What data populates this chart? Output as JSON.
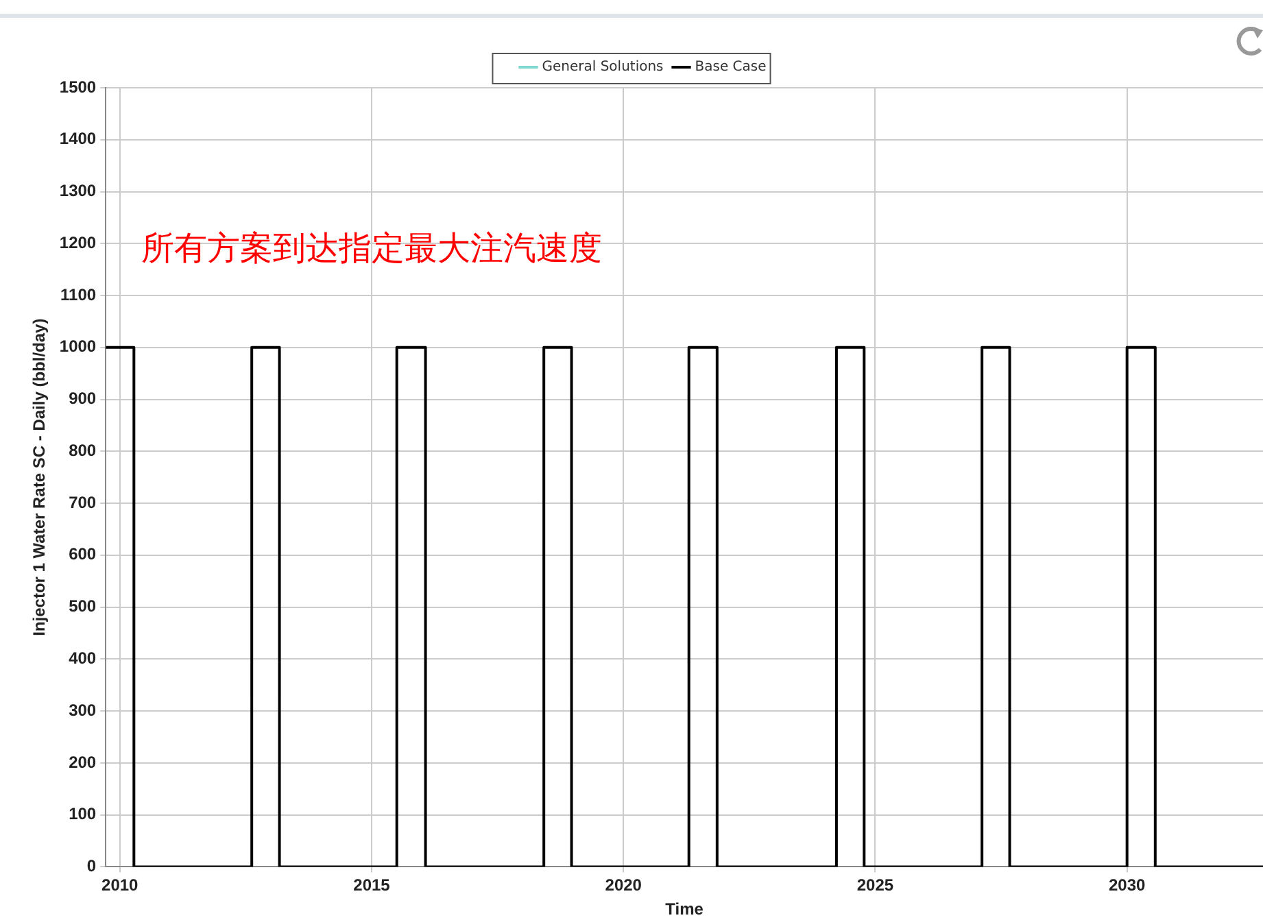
{
  "chart_data": {
    "type": "line",
    "xlabel": "Time",
    "ylabel": "Injector 1 Water Rate SC - Daily (bbl/day)",
    "annotations": [
      "所有方案到达指定最大注汽速度"
    ],
    "xlim": [
      2009.72,
      2032.7
    ],
    "xticks": [
      2010,
      2015,
      2020,
      2025,
      2030
    ],
    "ylim": [
      0,
      1500
    ],
    "yticks": [
      0,
      100,
      200,
      300,
      400,
      500,
      600,
      700,
      800,
      900,
      1000,
      1100,
      1200,
      1300,
      1400,
      1500
    ],
    "grid": true,
    "legend": "top",
    "marker": "none",
    "line_style": "solid",
    "series": [
      {
        "name": "General Solutions",
        "color": "#7fd8d0"
      },
      {
        "name": "Base Case",
        "color": "#000000",
        "x": [
          2009.72,
          2010.28,
          2010.28,
          2012.62,
          2012.62,
          2013.17,
          2013.17,
          2015.5,
          2015.5,
          2016.07,
          2016.07,
          2018.42,
          2018.42,
          2018.97,
          2018.97,
          2021.3,
          2021.3,
          2021.86,
          2021.86,
          2024.23,
          2024.23,
          2024.78,
          2024.78,
          2027.12,
          2027.12,
          2027.67,
          2027.67,
          2030.0,
          2030.0,
          2030.56,
          2030.56,
          2032.7
        ],
        "values": [
          1000,
          1000,
          0,
          0,
          1000,
          1000,
          0,
          0,
          1000,
          1000,
          0,
          0,
          1000,
          1000,
          0,
          0,
          1000,
          1000,
          0,
          0,
          1000,
          1000,
          0,
          0,
          1000,
          1000,
          0,
          0,
          1000,
          1000,
          0,
          0
        ]
      }
    ]
  }
}
